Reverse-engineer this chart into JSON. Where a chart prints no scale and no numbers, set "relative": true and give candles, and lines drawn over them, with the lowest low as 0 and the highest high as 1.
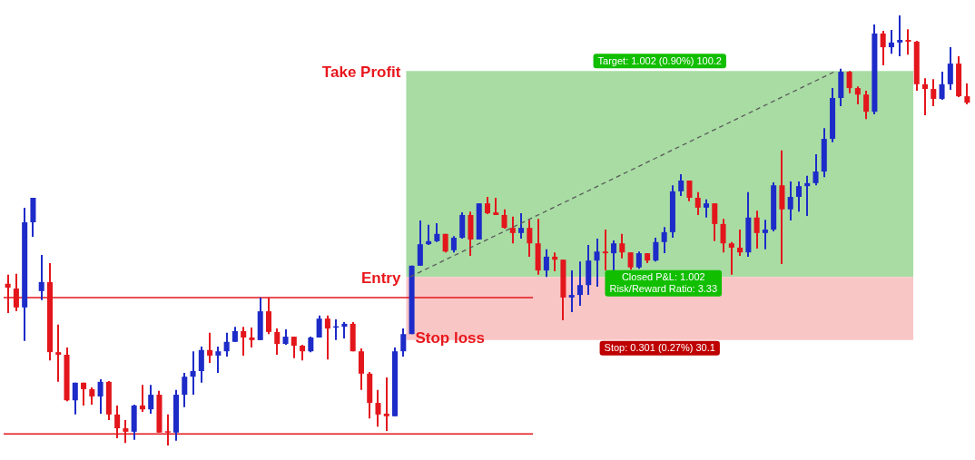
{
  "chart_data": {
    "type": "candlestick",
    "relative": true,
    "tick_labels": false,
    "categories": [
      null,
      null,
      null,
      null,
      null,
      null,
      null,
      null,
      null,
      null,
      null,
      null,
      null,
      null,
      null,
      null,
      null,
      null,
      null,
      null,
      null,
      null,
      null,
      null,
      null,
      null,
      null,
      null,
      null,
      null,
      null,
      null,
      null,
      null,
      null,
      null,
      null,
      null,
      null,
      null,
      null,
      null,
      null,
      null,
      null,
      null,
      null,
      null,
      null,
      null,
      null,
      null,
      null,
      null,
      null,
      null,
      null,
      null,
      null,
      null,
      null,
      null,
      null,
      null,
      null,
      null,
      null,
      null,
      null,
      null,
      null,
      null,
      null,
      null,
      null,
      null,
      null,
      null,
      null,
      null,
      null,
      null,
      null,
      null,
      null,
      null,
      null,
      null,
      null,
      null,
      null,
      null,
      null,
      null,
      null,
      null,
      null,
      null,
      null,
      null,
      null,
      null,
      null,
      null,
      null,
      null,
      null,
      null,
      null,
      null,
      null,
      null,
      null,
      null,
      null
    ],
    "ohlc": [
      [
        0.376,
        0.397,
        0.308,
        0.367
      ],
      [
        0.365,
        0.399,
        0.312,
        0.321
      ],
      [
        0.321,
        0.553,
        0.243,
        0.519
      ],
      [
        0.519,
        0.576,
        0.485,
        0.576
      ],
      [
        0.359,
        0.443,
        0.338,
        0.38
      ],
      [
        0.38,
        0.424,
        0.198,
        0.217
      ],
      [
        0.217,
        0.281,
        0.148,
        0.211
      ],
      [
        0.211,
        0.228,
        0.103,
        0.105
      ],
      [
        0.105,
        0.146,
        0.072,
        0.146
      ],
      [
        0.146,
        0.146,
        0.093,
        0.131
      ],
      [
        0.131,
        0.135,
        0.095,
        0.114
      ],
      [
        0.114,
        0.154,
        0.074,
        0.148
      ],
      [
        0.148,
        0.15,
        0.059,
        0.072
      ],
      [
        0.072,
        0.093,
        0.017,
        0.04
      ],
      [
        0.04,
        0.059,
        0.006,
        0.032
      ],
      [
        0.032,
        0.095,
        0.013,
        0.093
      ],
      [
        0.093,
        0.141,
        0.078,
        0.084
      ],
      [
        0.084,
        0.141,
        0.074,
        0.118
      ],
      [
        0.118,
        0.127,
        0.03,
        0.03
      ],
      [
        0.032,
        0.072,
        0,
        0.03
      ],
      [
        0.03,
        0.129,
        0.011,
        0.118
      ],
      [
        0.118,
        0.169,
        0.089,
        0.16
      ],
      [
        0.16,
        0.219,
        0.118,
        0.173
      ],
      [
        0.173,
        0.23,
        0.146,
        0.222
      ],
      [
        0.222,
        0.262,
        0.192,
        0.209
      ],
      [
        0.209,
        0.23,
        0.169,
        0.219
      ],
      [
        0.219,
        0.262,
        0.207,
        0.241
      ],
      [
        0.241,
        0.276,
        0.241,
        0.266
      ],
      [
        0.266,
        0.276,
        0.209,
        0.251
      ],
      [
        0.251,
        0.274,
        0.228,
        0.245
      ],
      [
        0.245,
        0.344,
        0.245,
        0.312
      ],
      [
        0.312,
        0.344,
        0.259,
        0.264
      ],
      [
        0.264,
        0.272,
        0.211,
        0.236
      ],
      [
        0.236,
        0.27,
        0.234,
        0.253
      ],
      [
        0.253,
        0.253,
        0.203,
        0.232
      ],
      [
        0.232,
        0.234,
        0.198,
        0.219
      ],
      [
        0.219,
        0.253,
        0.217,
        0.251
      ],
      [
        0.251,
        0.302,
        0.251,
        0.295
      ],
      [
        0.295,
        0.302,
        0.2,
        0.272
      ],
      [
        0.274,
        0.293,
        0.245,
        0.276
      ],
      [
        0.276,
        0.287,
        0.249,
        0.283
      ],
      [
        0.283,
        0.287,
        0.219,
        0.219
      ],
      [
        0.219,
        0.226,
        0.129,
        0.167
      ],
      [
        0.167,
        0.171,
        0.063,
        0.099
      ],
      [
        0.099,
        0.129,
        0.044,
        0.072
      ],
      [
        0.074,
        0.158,
        0.034,
        0.068
      ],
      [
        0.068,
        0.228,
        0.068,
        0.219
      ],
      [
        0.219,
        0.272,
        0.207,
        0.259
      ],
      [
        0.259,
        0.418,
        0.259,
        0.418
      ],
      [
        0.418,
        0.523,
        0.418,
        0.468
      ],
      [
        0.468,
        0.513,
        0.466,
        0.475
      ],
      [
        0.475,
        0.517,
        0.473,
        0.492
      ],
      [
        0.492,
        0.492,
        0.449,
        0.451
      ],
      [
        0.454,
        0.487,
        0.449,
        0.483
      ],
      [
        0.483,
        0.542,
        0.481,
        0.536
      ],
      [
        0.536,
        0.544,
        0.441,
        0.479
      ],
      [
        0.479,
        0.563,
        0.479,
        0.563
      ],
      [
        0.563,
        0.578,
        0.538,
        0.54
      ],
      [
        0.542,
        0.576,
        0.536,
        0.536
      ],
      [
        0.536,
        0.549,
        0.504,
        0.506
      ],
      [
        0.506,
        0.532,
        0.47,
        0.494
      ],
      [
        0.494,
        0.54,
        0.481,
        0.506
      ],
      [
        0.506,
        0.525,
        0.439,
        0.47
      ],
      [
        0.47,
        0.527,
        0.397,
        0.407
      ],
      [
        0.407,
        0.456,
        0.392,
        0.439
      ],
      [
        0.439,
        0.449,
        0.405,
        0.432
      ],
      [
        0.432,
        0.432,
        0.291,
        0.344
      ],
      [
        0.344,
        0.407,
        0.31,
        0.35
      ],
      [
        0.35,
        0.428,
        0.325,
        0.373
      ],
      [
        0.373,
        0.466,
        0.35,
        0.43
      ],
      [
        0.43,
        0.481,
        0.369,
        0.451
      ],
      [
        0.451,
        0.502,
        0.407,
        0.447
      ],
      [
        0.447,
        0.477,
        0.407,
        0.47
      ],
      [
        0.47,
        0.492,
        0.435,
        0.449
      ],
      [
        0.449,
        0.449,
        0.409,
        0.414
      ],
      [
        0.414,
        0.451,
        0.411,
        0.447
      ],
      [
        0.447,
        0.447,
        0.424,
        0.43
      ],
      [
        0.43,
        0.483,
        0.428,
        0.473
      ],
      [
        0.473,
        0.508,
        0.447,
        0.496
      ],
      [
        0.496,
        0.605,
        0.483,
        0.591
      ],
      [
        0.591,
        0.631,
        0.58,
        0.616
      ],
      [
        0.616,
        0.616,
        0.568,
        0.576
      ],
      [
        0.576,
        0.589,
        0.536,
        0.553
      ],
      [
        0.553,
        0.572,
        0.53,
        0.563
      ],
      [
        0.563,
        0.563,
        0.475,
        0.515
      ],
      [
        0.515,
        0.527,
        0.449,
        0.47
      ],
      [
        0.47,
        0.473,
        0.397,
        0.46
      ],
      [
        0.46,
        0.502,
        0.441,
        0.449
      ],
      [
        0.449,
        0.589,
        0.439,
        0.53
      ],
      [
        0.53,
        0.546,
        0.458,
        0.494
      ],
      [
        0.494,
        0.525,
        0.456,
        0.502
      ],
      [
        0.502,
        0.612,
        0.498,
        0.605
      ],
      [
        0.605,
        0.686,
        0.422,
        0.549
      ],
      [
        0.549,
        0.614,
        0.523,
        0.578
      ],
      [
        0.578,
        0.614,
        0.544,
        0.603
      ],
      [
        0.603,
        0.627,
        0.534,
        0.61
      ],
      [
        0.61,
        0.677,
        0.605,
        0.637
      ],
      [
        0.637,
        0.738,
        0.624,
        0.713
      ],
      [
        0.713,
        0.831,
        0.705,
        0.808
      ],
      [
        0.808,
        0.876,
        0.789,
        0.869
      ],
      [
        0.869,
        0.871,
        0.819,
        0.831
      ],
      [
        0.831,
        0.835,
        0.793,
        0.816
      ],
      [
        0.816,
        0.825,
        0.759,
        0.776
      ],
      [
        0.776,
        0.979,
        0.77,
        0.958
      ],
      [
        0.958,
        0.964,
        0.884,
        0.926
      ],
      [
        0.926,
        0.966,
        0.911,
        0.937
      ],
      [
        0.937,
        1,
        0.905,
        0.943
      ],
      [
        0.943,
        0.968,
        0.909,
        0.939
      ],
      [
        0.939,
        0.941,
        0.825,
        0.84
      ],
      [
        0.84,
        0.854,
        0.768,
        0.829
      ],
      [
        0.829,
        0.852,
        0.789,
        0.806
      ],
      [
        0.806,
        0.869,
        0.804,
        0.84
      ],
      [
        0.84,
        0.926,
        0.827,
        0.888
      ],
      [
        0.888,
        0.905,
        0.81,
        0.812
      ],
      [
        0.812,
        0.842,
        0.793,
        0.797
      ]
    ],
    "colors": [
      "#e3161c",
      "#e3161c",
      "#1d2bc8",
      "#1d2bc8",
      "#1d2bc8",
      "#e3161c",
      "#e3161c",
      "#e3161c",
      "#1d2bc8",
      "#e3161c",
      "#e3161c",
      "#1d2bc8",
      "#e3161c",
      "#e3161c",
      "#e3161c",
      "#1d2bc8",
      "#e3161c",
      "#1d2bc8",
      "#e3161c",
      "#e3161c",
      "#1d2bc8",
      "#1d2bc8",
      "#1d2bc8",
      "#1d2bc8",
      "#e3161c",
      "#1d2bc8",
      "#1d2bc8",
      "#1d2bc8",
      "#e3161c",
      "#e3161c",
      "#1d2bc8",
      "#e3161c",
      "#e3161c",
      "#1d2bc8",
      "#e3161c",
      "#e3161c",
      "#1d2bc8",
      "#1d2bc8",
      "#e3161c",
      "#1d2bc8",
      "#1d2bc8",
      "#e3161c",
      "#e3161c",
      "#e3161c",
      "#e3161c",
      "#e3161c",
      "#1d2bc8",
      "#1d2bc8",
      "#1d2bc8",
      "#1d2bc8",
      "#1d2bc8",
      "#1d2bc8",
      "#e3161c",
      "#1d2bc8",
      "#1d2bc8",
      "#e3161c",
      "#1d2bc8",
      "#e3161c",
      "#e3161c",
      "#e3161c",
      "#e3161c",
      "#1d2bc8",
      "#e3161c",
      "#e3161c",
      "#1d2bc8",
      "#e3161c",
      "#e3161c",
      "#1d2bc8",
      "#1d2bc8",
      "#1d2bc8",
      "#1d2bc8",
      "#e3161c",
      "#1d2bc8",
      "#e3161c",
      "#e3161c",
      "#1d2bc8",
      "#e3161c",
      "#1d2bc8",
      "#1d2bc8",
      "#1d2bc8",
      "#1d2bc8",
      "#e3161c",
      "#e3161c",
      "#1d2bc8",
      "#e3161c",
      "#e3161c",
      "#e3161c",
      "#e3161c",
      "#1d2bc8",
      "#e3161c",
      "#1d2bc8",
      "#1d2bc8",
      "#e3161c",
      "#1d2bc8",
      "#1d2bc8",
      "#1d2bc8",
      "#1d2bc8",
      "#1d2bc8",
      "#1d2bc8",
      "#1d2bc8",
      "#e3161c",
      "#e3161c",
      "#e3161c",
      "#1d2bc8",
      "#e3161c",
      "#1d2bc8",
      "#1d2bc8",
      "#e3161c",
      "#e3161c",
      "#e3161c",
      "#e3161c",
      "#1d2bc8",
      "#1d2bc8",
      "#e3161c",
      "#e3161c"
    ],
    "ref_lines": [
      {
        "axis": "y",
        "value": 0.344,
        "color": "#e3161c"
      },
      {
        "axis": "y",
        "value": 0.027,
        "color": "#e3161c"
      }
    ],
    "bands": [
      {
        "axis": "y",
        "from": 0.392,
        "to": 0.871,
        "label": "Target: 1.002 (0.90%) 100.2",
        "color": "#a8dca3"
      },
      {
        "axis": "y",
        "from": 0.245,
        "to": 0.392,
        "label": "Stop: 0.301 (0.27%) 30.1",
        "color": "#f9c6c6"
      }
    ],
    "annotations": [
      "Take Profit",
      "Entry",
      {
        "text": "Stop loss",
        "y": 0.245
      },
      "Closed P&L: 1.002\nRisk/Reward Ratio: 3.33"
    ]
  }
}
